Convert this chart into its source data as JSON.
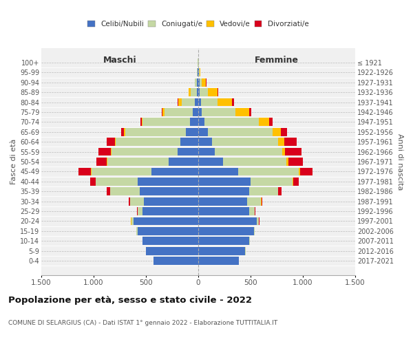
{
  "age_groups": [
    "0-4",
    "5-9",
    "10-14",
    "15-19",
    "20-24",
    "25-29",
    "30-34",
    "35-39",
    "40-44",
    "45-49",
    "50-54",
    "55-59",
    "60-64",
    "65-69",
    "70-74",
    "75-79",
    "80-84",
    "85-89",
    "90-94",
    "95-99",
    "100+"
  ],
  "birth_years": [
    "2017-2021",
    "2012-2016",
    "2007-2011",
    "2002-2006",
    "1997-2001",
    "1992-1996",
    "1987-1991",
    "1982-1986",
    "1977-1981",
    "1972-1976",
    "1967-1971",
    "1962-1966",
    "1957-1961",
    "1952-1956",
    "1947-1951",
    "1942-1946",
    "1937-1941",
    "1932-1936",
    "1927-1931",
    "1922-1926",
    "≤ 1921"
  ],
  "males": {
    "celibi": [
      430,
      500,
      530,
      580,
      620,
      530,
      520,
      560,
      580,
      450,
      280,
      200,
      170,
      120,
      80,
      50,
      30,
      15,
      10,
      5,
      2
    ],
    "coniugati": [
      0,
      2,
      3,
      10,
      20,
      50,
      130,
      280,
      400,
      570,
      590,
      630,
      620,
      580,
      450,
      270,
      130,
      60,
      20,
      5,
      2
    ],
    "vedovi": [
      0,
      0,
      0,
      0,
      2,
      2,
      2,
      2,
      3,
      5,
      5,
      5,
      5,
      8,
      10,
      20,
      30,
      15,
      5,
      2,
      0
    ],
    "divorziati": [
      0,
      0,
      0,
      2,
      3,
      5,
      10,
      30,
      50,
      120,
      100,
      120,
      80,
      30,
      15,
      10,
      5,
      2,
      0,
      0,
      0
    ]
  },
  "females": {
    "nubili": [
      390,
      450,
      490,
      530,
      560,
      490,
      470,
      490,
      500,
      380,
      240,
      160,
      130,
      90,
      60,
      35,
      25,
      15,
      10,
      5,
      2
    ],
    "coniugate": [
      0,
      1,
      2,
      8,
      20,
      50,
      130,
      270,
      400,
      580,
      600,
      640,
      630,
      620,
      520,
      320,
      160,
      80,
      25,
      8,
      2
    ],
    "vedove": [
      0,
      0,
      0,
      1,
      2,
      2,
      3,
      5,
      8,
      15,
      20,
      30,
      60,
      80,
      100,
      130,
      140,
      90,
      40,
      10,
      2
    ],
    "divorziate": [
      0,
      0,
      0,
      2,
      3,
      5,
      10,
      30,
      50,
      120,
      140,
      160,
      120,
      60,
      30,
      20,
      15,
      5,
      2,
      0,
      0
    ]
  },
  "colors": {
    "celibi": "#4472c4",
    "coniugati": "#c5d8a4",
    "vedovi": "#ffc000",
    "divorziati": "#d9001b"
  },
  "title": "Popolazione per età, sesso e stato civile - 2022",
  "subtitle": "COMUNE DI SELARGIUS (CA) - Dati ISTAT 1° gennaio 2022 - Elaborazione TUTTITALIA.IT",
  "xlabel_left": "Maschi",
  "xlabel_right": "Femmine",
  "ylabel_left": "Fasce di età",
  "ylabel_right": "Anni di nascita",
  "xlim": 1500,
  "legend_labels": [
    "Celibi/Nubili",
    "Coniugati/e",
    "Vedovi/e",
    "Divorziati/e"
  ],
  "bg_color": "#f0f0f0"
}
